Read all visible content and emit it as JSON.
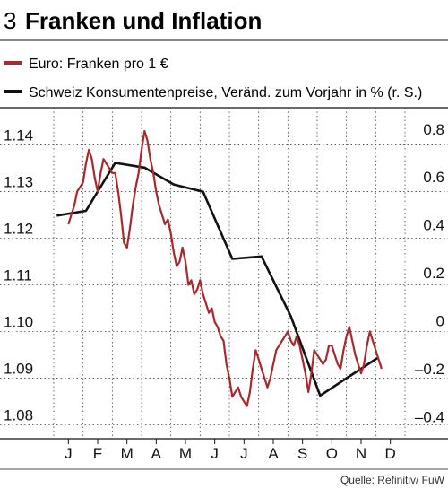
{
  "chart_data": {
    "type": "line",
    "chart_number": "3",
    "title": "Franken und Inflation",
    "source": "Quelle: Refinitiv/ FuW",
    "grid": true,
    "legend_position": "top",
    "x_labels": [
      "J",
      "F",
      "M",
      "A",
      "M",
      "J",
      "J",
      "A",
      "S",
      "O",
      "N",
      "D"
    ],
    "left_axis": {
      "ticks": [
        "1.14",
        "1.13",
        "1.12",
        "1.11",
        "1.10",
        "1.09",
        "1.08"
      ],
      "ylim": [
        1.077,
        1.148
      ]
    },
    "right_axis": {
      "ticks": [
        "0.8",
        "0.6",
        "0.4",
        "0.2",
        "0",
        "–0.2",
        "–0.4"
      ],
      "ylim": [
        -0.45,
        0.93
      ]
    },
    "series": [
      {
        "name": "Euro: Franken pro 1 €",
        "color": "#a8292d",
        "axis": "left",
        "x": [
          0.0,
          0.1,
          0.2,
          0.3,
          0.4,
          0.5,
          0.6,
          0.7,
          0.8,
          0.9,
          1.0,
          1.1,
          1.2,
          1.3,
          1.4,
          1.5,
          1.6,
          1.7,
          1.8,
          1.9,
          2.0,
          2.1,
          2.2,
          2.3,
          2.4,
          2.5,
          2.6,
          2.7,
          2.8,
          2.9,
          3.0,
          3.1,
          3.2,
          3.3,
          3.4,
          3.5,
          3.6,
          3.7,
          3.8,
          3.9,
          4.0,
          4.1,
          4.2,
          4.3,
          4.4,
          4.5,
          4.6,
          4.7,
          4.8,
          4.9,
          5.0,
          5.1,
          5.2,
          5.3,
          5.4,
          5.5,
          5.6,
          5.7,
          5.8,
          5.9,
          6.0,
          6.1,
          6.2,
          6.3,
          6.4,
          6.5,
          6.6,
          6.7,
          6.8,
          6.9,
          7.0,
          7.1,
          7.2,
          7.3,
          7.4,
          7.5,
          7.6,
          7.7,
          7.8,
          7.9,
          8.0,
          8.1,
          8.2,
          8.3,
          8.4,
          8.5,
          8.6,
          8.7,
          8.8,
          8.9,
          9.0,
          9.1,
          9.2,
          9.3,
          9.4,
          9.5,
          9.6,
          9.7,
          9.8,
          9.9,
          10.0,
          10.1,
          10.2,
          10.3,
          10.4,
          10.5,
          10.6,
          10.7
        ],
        "values": [
          1.123,
          1.125,
          1.127,
          1.13,
          1.131,
          1.132,
          1.136,
          1.139,
          1.137,
          1.133,
          1.13,
          1.134,
          1.137,
          1.136,
          1.135,
          1.134,
          1.134,
          1.13,
          1.125,
          1.119,
          1.118,
          1.122,
          1.127,
          1.131,
          1.134,
          1.139,
          1.143,
          1.141,
          1.137,
          1.134,
          1.13,
          1.127,
          1.125,
          1.123,
          1.124,
          1.121,
          1.117,
          1.114,
          1.115,
          1.118,
          1.115,
          1.11,
          1.111,
          1.108,
          1.109,
          1.111,
          1.108,
          1.106,
          1.104,
          1.105,
          1.102,
          1.101,
          1.099,
          1.098,
          1.093,
          1.09,
          1.086,
          1.087,
          1.088,
          1.086,
          1.085,
          1.084,
          1.087,
          1.092,
          1.096,
          1.094,
          1.092,
          1.09,
          1.088,
          1.09,
          1.093,
          1.096,
          1.097,
          1.098,
          1.099,
          1.1,
          1.098,
          1.097,
          1.099,
          1.097,
          1.094,
          1.091,
          1.087,
          1.091,
          1.096,
          1.095,
          1.094,
          1.093,
          1.094,
          1.097,
          1.097,
          1.095,
          1.093,
          1.092,
          1.096,
          1.099,
          1.101,
          1.098,
          1.095,
          1.093,
          1.091,
          1.093,
          1.097,
          1.1,
          1.098,
          1.096,
          1.094,
          1.092
        ]
      },
      {
        "name": "Schweiz Konsumentenpreise, Veränd. zum Vorjahr in % (r. S.)",
        "color": "#111111",
        "axis": "right",
        "x": [
          -0.4,
          0.6,
          1.6,
          2.6,
          3.6,
          4.6,
          5.6,
          6.6,
          7.6,
          8.6,
          9.6,
          10.6
        ],
        "values": [
          0.48,
          0.5,
          0.7,
          0.68,
          0.61,
          0.58,
          0.3,
          0.31,
          0.06,
          -0.27,
          -0.19,
          -0.11
        ]
      }
    ]
  }
}
